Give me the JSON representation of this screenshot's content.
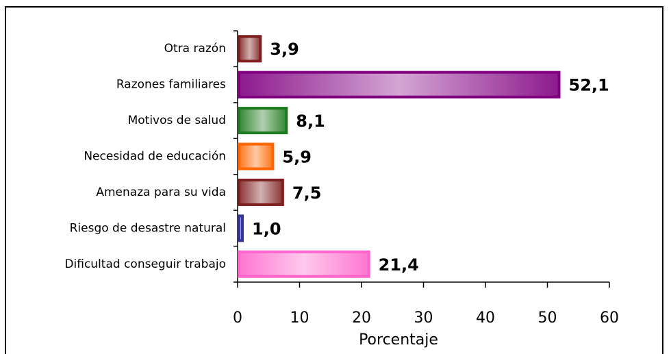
{
  "chart_data": {
    "type": "bar",
    "orientation": "horizontal",
    "categories": [
      "Otra razón",
      "Razones familiares",
      "Motivos de salud",
      "Necesidad de educación",
      "Amenaza para su vida",
      "Riesgo de desastre natural",
      "Dificultad conseguir trabajo"
    ],
    "values": [
      3.9,
      52.1,
      8.1,
      5.9,
      7.5,
      1.0,
      21.4
    ],
    "value_labels": [
      "3,9",
      "52,1",
      "8,1",
      "5,9",
      "7,5",
      "1,0",
      "21,4"
    ],
    "colors": [
      "#7f1f1f",
      "#800080",
      "#1e7a1e",
      "#ff6600",
      "#7f1f1f",
      "#333399",
      "#ff66cc"
    ],
    "xlabel": "Porcentaje",
    "xlim": [
      0,
      60
    ],
    "xticks": [
      0,
      10,
      20,
      30,
      40,
      50,
      60
    ],
    "grid": false
  }
}
